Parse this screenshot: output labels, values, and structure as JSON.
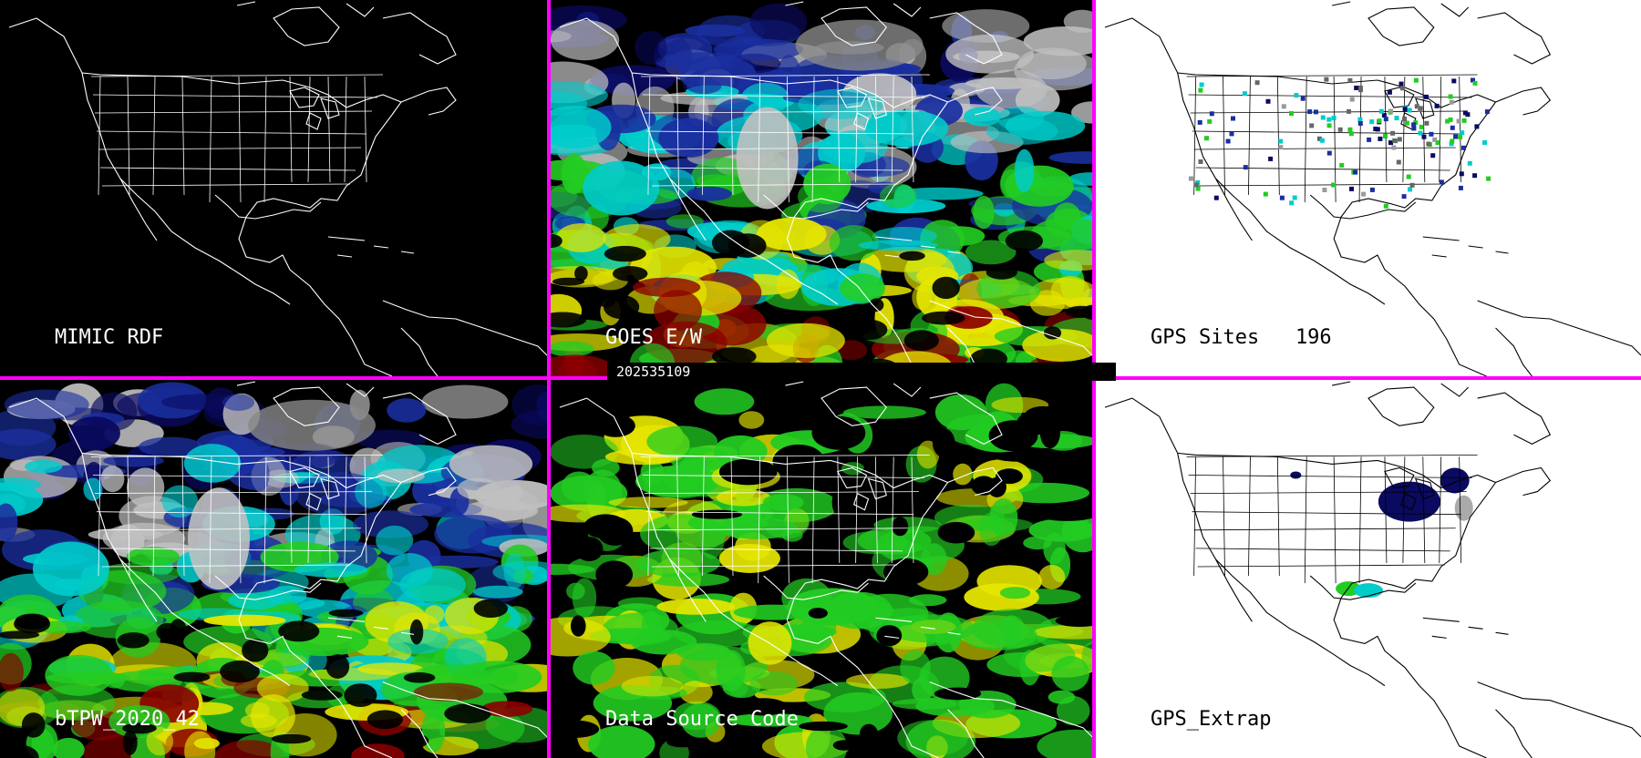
{
  "panels": [
    {
      "id": "mimic-rdf",
      "label": "MIMIC RDF",
      "theme": "dark"
    },
    {
      "id": "goes-ew",
      "label": "GOES E/W",
      "theme": "dark"
    },
    {
      "id": "gps-sites",
      "label": "GPS Sites   196",
      "theme": "light"
    },
    {
      "id": "btpw",
      "label": "bTPW_2020_42",
      "theme": "dark"
    },
    {
      "id": "data-source-code",
      "label": "Data Source Code",
      "theme": "dark"
    },
    {
      "id": "gps-extrap",
      "label": "GPS_Extrap",
      "theme": "light"
    }
  ],
  "timestamp": "202535109",
  "colors": {
    "divider": "#ff00ff",
    "map_lines_dark": "#ffffff",
    "map_lines_light": "#000000",
    "moisture_scale": [
      "#8b0000",
      "#e6e600",
      "#22cc22",
      "#00cccc",
      "#1a2fa0",
      "#0a0a60",
      "#c0c0c0"
    ]
  }
}
